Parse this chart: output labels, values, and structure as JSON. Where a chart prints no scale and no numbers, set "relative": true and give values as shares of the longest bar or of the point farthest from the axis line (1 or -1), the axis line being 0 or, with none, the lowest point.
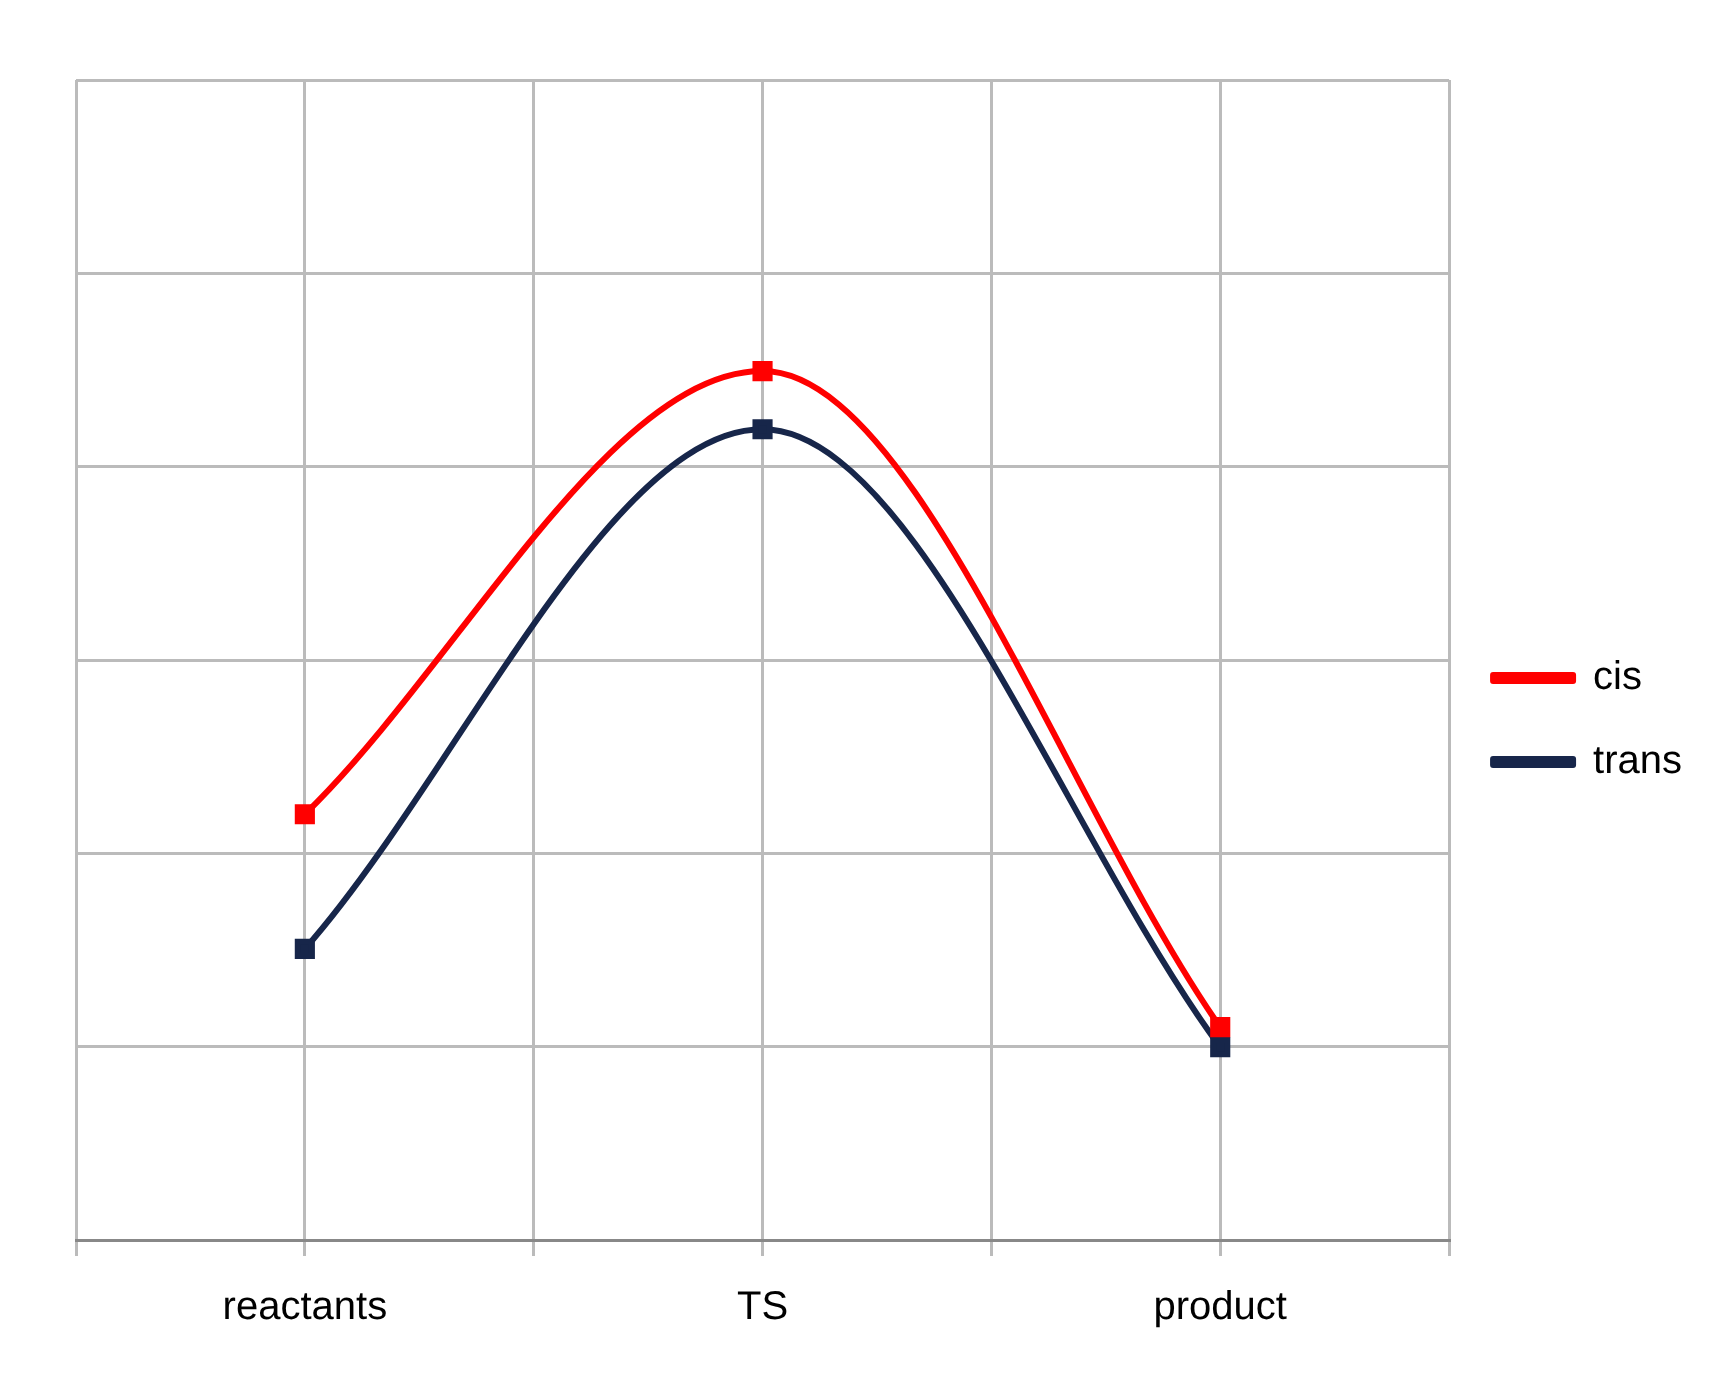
{
  "chart_data": {
    "type": "line",
    "categories": [
      "reactants",
      "TS",
      "product"
    ],
    "relative": true,
    "grid": true,
    "legend": "right",
    "marker": "square",
    "line_style": "solid",
    "series": [
      {
        "name": "cis",
        "color": "#ff0000",
        "values": [
          0.49,
          1,
          0.245
        ]
      },
      {
        "name": "trans",
        "color": "#17264a",
        "values": [
          0.335,
          0.933,
          0.222
        ]
      }
    ]
  }
}
